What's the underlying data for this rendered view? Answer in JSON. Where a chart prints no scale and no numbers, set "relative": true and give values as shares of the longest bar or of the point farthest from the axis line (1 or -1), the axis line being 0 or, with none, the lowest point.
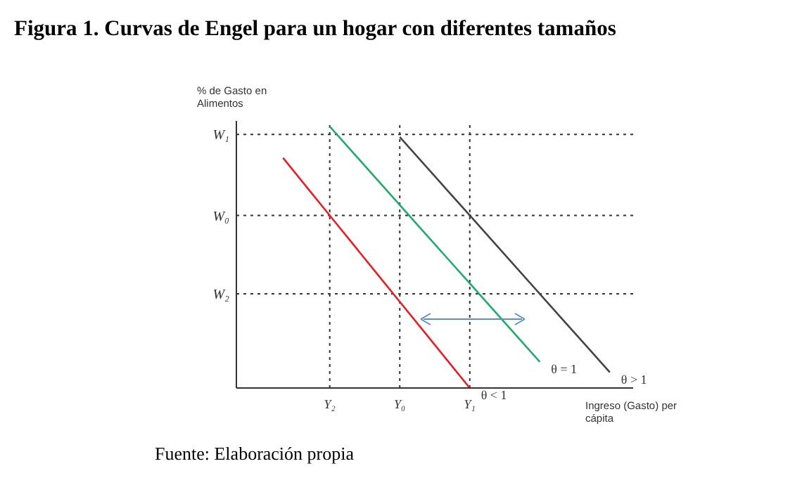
{
  "chart_data": {
    "type": "line",
    "title": "Figura 1. Curvas de Engel para un hogar con diferentes tamaños",
    "ylabel": "% de Gasto en Alimentos",
    "xlabel": "Ingreso (Gasto) per cápita",
    "annotations": [
      "Fuente: Elaboración propia"
    ],
    "relative": true,
    "legend": false,
    "grid": false,
    "marker": "none",
    "line_style": "solid",
    "categories": [
      null,
      null,
      null,
      null,
      "Y₂",
      null,
      null,
      "Y₀",
      null,
      null,
      "Y₁",
      null,
      null,
      null,
      null,
      null,
      null,
      null
    ],
    "series": [
      {
        "name": "θ > 1",
        "color": "#444444",
        "values": [
          null,
          null,
          null,
          null,
          null,
          null,
          null,
          0.96,
          0.86,
          0.76,
          0.66,
          0.56,
          0.46,
          0.36,
          0.26,
          0.16,
          0.06,
          null
        ]
      },
      {
        "name": "θ = 1",
        "color": "#1faa6a",
        "values": [
          null,
          null,
          null,
          null,
          1,
          0.9,
          0.8,
          0.7,
          0.6,
          0.5,
          0.4,
          0.3,
          0.2,
          0.1,
          null,
          null,
          null,
          null
        ]
      },
      {
        "name": "θ < 1",
        "color": "#ee1c24",
        "values": [
          null,
          null,
          0.88,
          0.77,
          0.66,
          0.55,
          0.44,
          0.33,
          0.22,
          0.11,
          0,
          null,
          null,
          null,
          null,
          null,
          null,
          null
        ]
      }
    ],
    "ref_lines": [
      {
        "axis": "y",
        "value": 0.97,
        "label": "W₁",
        "line_style": "dotted",
        "color": "#333333"
      },
      {
        "axis": "y",
        "value": 0.66,
        "label": "W₀",
        "line_style": "dotted",
        "color": "#333333"
      },
      {
        "axis": "y",
        "value": 0.36,
        "label": "W₂",
        "line_style": "dotted",
        "color": "#333333"
      },
      {
        "axis": "x",
        "value": "Y₂",
        "label": null,
        "line_style": "dotted",
        "color": "#333333"
      },
      {
        "axis": "x",
        "value": "Y₀",
        "label": null,
        "line_style": "dotted",
        "color": "#333333"
      },
      {
        "axis": "x",
        "value": "Y₁",
        "label": null,
        "line_style": "dotted",
        "color": "#333333"
      }
    ]
  }
}
